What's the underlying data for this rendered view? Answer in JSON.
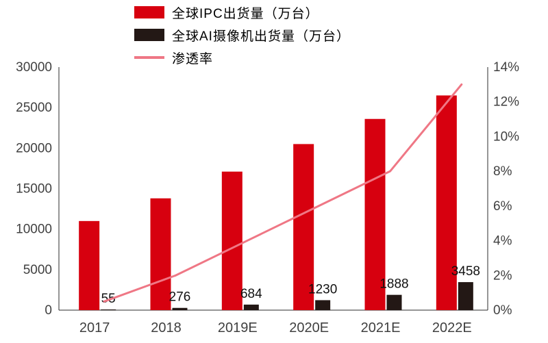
{
  "legend": {
    "items": [
      {
        "label": "全球IPC出货量（万台）",
        "color": "#d7000f",
        "marker": "rect"
      },
      {
        "label": "全球AI摄像机出货量（万台）",
        "color": "#231815",
        "marker": "rect"
      },
      {
        "label": "渗透率",
        "color": "#ef7785",
        "marker": "line"
      }
    ]
  },
  "chart_data": {
    "type": "bar+line",
    "categories": [
      "2017",
      "2018",
      "2019E",
      "2020E",
      "2021E",
      "2022E"
    ],
    "series": [
      {
        "name": "全球IPC出货量（万台）",
        "type": "bar",
        "axis": "left",
        "color": "#d7000f",
        "values": [
          11000,
          13800,
          17100,
          20500,
          23600,
          26500
        ]
      },
      {
        "name": "全球AI摄像机出货量（万台）",
        "type": "bar",
        "axis": "left",
        "color": "#231815",
        "values": [
          55,
          276,
          684,
          1230,
          1888,
          3458
        ],
        "data_labels": [
          "55",
          "276",
          "684",
          "1230",
          "1888",
          "3458"
        ]
      },
      {
        "name": "渗透率",
        "type": "line",
        "axis": "right",
        "color": "#ef7785",
        "values_pct": [
          0.5,
          2.0,
          4.0,
          6.0,
          8.0,
          13.0
        ]
      }
    ],
    "left_axis": {
      "min": 0,
      "max": 30000,
      "step": 5000,
      "ticks": [
        "0",
        "5000",
        "10000",
        "15000",
        "20000",
        "25000",
        "30000"
      ]
    },
    "right_axis": {
      "min": 0,
      "max": 14,
      "step": 2,
      "ticks": [
        "0%",
        "2%",
        "4%",
        "6%",
        "8%",
        "10%",
        "12%",
        "14%"
      ]
    },
    "grid": false,
    "legend_position": "top-left",
    "axis_text_color": "#404040",
    "label_text_color": "#111111"
  }
}
